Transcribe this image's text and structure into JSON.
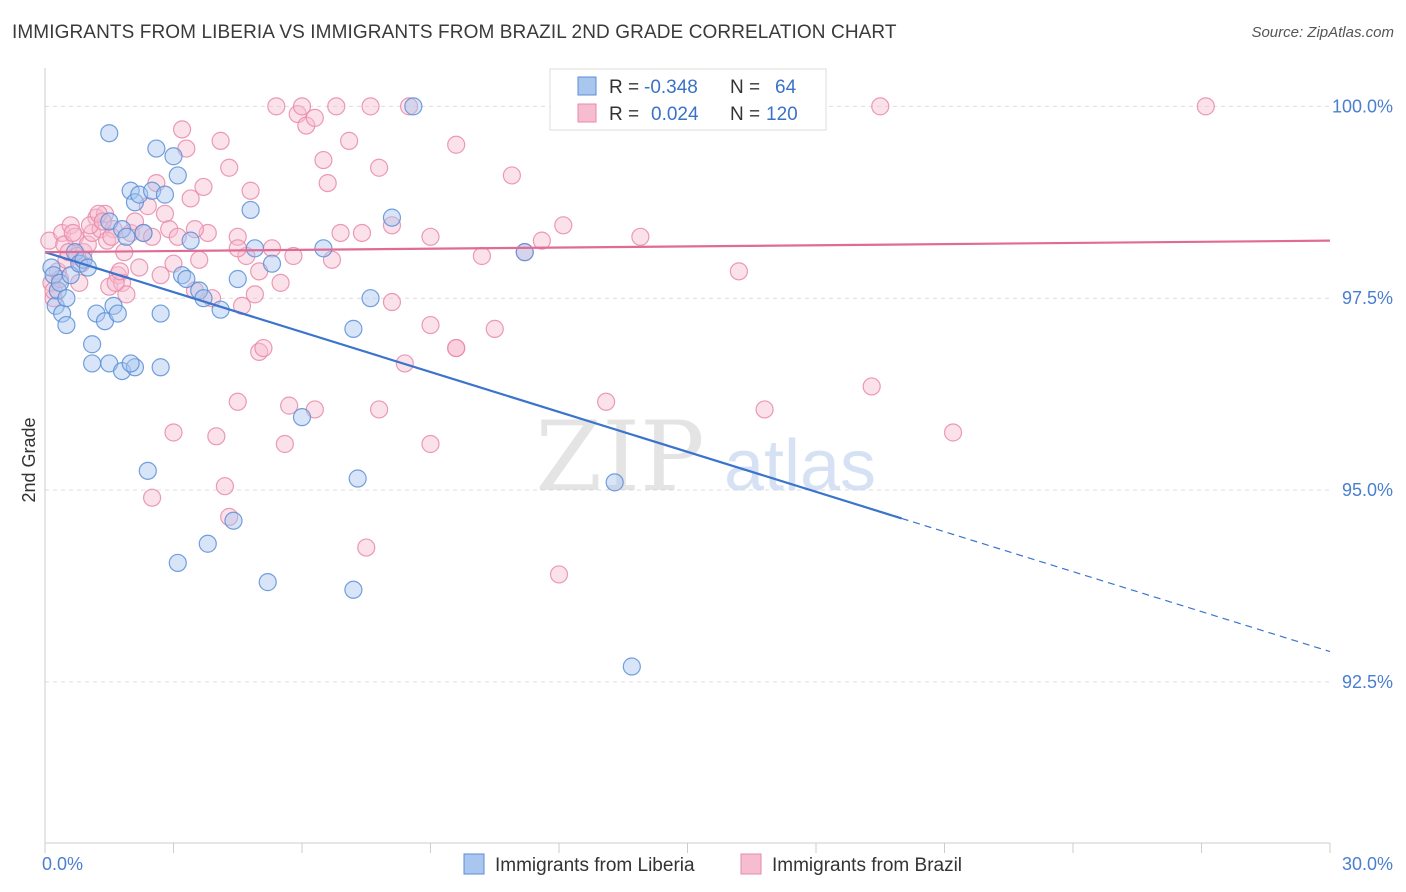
{
  "title": "IMMIGRANTS FROM LIBERIA VS IMMIGRANTS FROM BRAZIL 2ND GRADE CORRELATION CHART",
  "source": "Source: ZipAtlas.com",
  "watermark": {
    "part1": "ZIP",
    "part2": "atlas"
  },
  "colors": {
    "liberia_fill": "#a9c6ef",
    "liberia_stroke": "#5b8fd6",
    "liberia_line": "#3a74cc",
    "brazil_fill": "#f6bdd0",
    "brazil_stroke": "#e889aa",
    "brazil_line": "#e06b96",
    "axis_text": "#4a7fd0",
    "grid": "#dddddd"
  },
  "chart_data": {
    "type": "scatter",
    "xlabel": "",
    "ylabel": "2nd Grade",
    "xlim": [
      0,
      30
    ],
    "ylim": [
      90.4,
      100.5
    ],
    "x_tick_labels": [
      {
        "value": 0,
        "label": "0.0%"
      },
      {
        "value": 30,
        "label": "30.0%"
      }
    ],
    "y_tick_labels": [
      {
        "value": 100,
        "label": "100.0%"
      },
      {
        "value": 97.5,
        "label": "97.5%"
      },
      {
        "value": 95,
        "label": "95.0%"
      },
      {
        "value": 92.5,
        "label": "92.5%"
      }
    ],
    "grid": true,
    "legend_position": "bottom",
    "stats": [
      {
        "r_label": "R =",
        "r_value": "-0.348",
        "n_label": "N =",
        "n_value": "64"
      },
      {
        "r_label": "R =",
        "r_value": "0.024",
        "n_label": "N =",
        "n_value": "120"
      }
    ],
    "series": [
      {
        "name": "Immigrants from Liberia",
        "trend": {
          "x0": 0,
          "y0": 98.1,
          "x1": 20,
          "y1": 94.63,
          "x_dash_end": 30
        },
        "points": [
          [
            0.15,
            97.9
          ],
          [
            0.2,
            97.8
          ],
          [
            0.25,
            97.4
          ],
          [
            0.3,
            97.6
          ],
          [
            0.35,
            97.7
          ],
          [
            0.4,
            97.3
          ],
          [
            0.5,
            97.15
          ],
          [
            0.6,
            97.8
          ],
          [
            0.7,
            98.1
          ],
          [
            0.8,
            97.95
          ],
          [
            0.9,
            98.0
          ],
          [
            1.0,
            97.9
          ],
          [
            1.1,
            96.9
          ],
          [
            1.2,
            97.3
          ],
          [
            1.4,
            97.2
          ],
          [
            1.5,
            98.5
          ],
          [
            1.6,
            97.4
          ],
          [
            1.7,
            97.3
          ],
          [
            1.8,
            98.4
          ],
          [
            1.9,
            98.3
          ],
          [
            2.0,
            98.9
          ],
          [
            2.1,
            98.75
          ],
          [
            2.2,
            98.85
          ],
          [
            2.3,
            98.35
          ],
          [
            1.5,
            96.65
          ],
          [
            1.8,
            96.55
          ],
          [
            2.1,
            96.6
          ],
          [
            2.5,
            98.9
          ],
          [
            2.7,
            96.6
          ],
          [
            2.8,
            98.85
          ],
          [
            2.7,
            97.3
          ],
          [
            3.0,
            99.35
          ],
          [
            3.1,
            99.1
          ],
          [
            3.2,
            97.8
          ],
          [
            3.3,
            97.75
          ],
          [
            3.4,
            98.25
          ],
          [
            3.6,
            97.6
          ],
          [
            3.7,
            97.5
          ],
          [
            4.1,
            97.35
          ],
          [
            4.5,
            97.75
          ],
          [
            4.8,
            98.65
          ],
          [
            4.9,
            98.15
          ],
          [
            5.3,
            97.95
          ],
          [
            6.0,
            95.95
          ],
          [
            6.5,
            98.15
          ],
          [
            7.2,
            97.1
          ],
          [
            7.6,
            97.5
          ],
          [
            8.1,
            98.55
          ],
          [
            8.6,
            100.0
          ],
          [
            11.2,
            98.1
          ],
          [
            13.3,
            95.1
          ],
          [
            13.7,
            92.7
          ],
          [
            1.5,
            99.65
          ],
          [
            2.6,
            99.45
          ],
          [
            1.1,
            96.65
          ],
          [
            2.0,
            96.65
          ],
          [
            2.4,
            95.25
          ],
          [
            3.1,
            94.05
          ],
          [
            3.8,
            94.3
          ],
          [
            4.4,
            94.6
          ],
          [
            5.2,
            93.8
          ],
          [
            7.2,
            93.7
          ],
          [
            7.3,
            95.15
          ],
          [
            0.5,
            97.5
          ]
        ]
      },
      {
        "name": "Immigrants from Brazil",
        "trend": {
          "x0": 0,
          "y0": 98.1,
          "x1": 30,
          "y1": 98.25
        },
        "points": [
          [
            0.1,
            98.25
          ],
          [
            0.15,
            97.7
          ],
          [
            0.2,
            97.5
          ],
          [
            0.3,
            97.85
          ],
          [
            0.4,
            98.35
          ],
          [
            0.5,
            98.0
          ],
          [
            0.6,
            98.45
          ],
          [
            0.7,
            98.3
          ],
          [
            0.8,
            97.7
          ],
          [
            0.9,
            98.1
          ],
          [
            1.0,
            98.2
          ],
          [
            1.1,
            98.35
          ],
          [
            1.2,
            98.55
          ],
          [
            1.3,
            98.4
          ],
          [
            1.4,
            98.6
          ],
          [
            1.5,
            97.65
          ],
          [
            1.6,
            98.4
          ],
          [
            1.7,
            97.8
          ],
          [
            1.8,
            97.7
          ],
          [
            1.9,
            97.55
          ],
          [
            2.0,
            98.35
          ],
          [
            2.1,
            98.5
          ],
          [
            2.2,
            97.9
          ],
          [
            2.3,
            98.35
          ],
          [
            2.4,
            98.7
          ],
          [
            2.5,
            98.3
          ],
          [
            2.6,
            99.0
          ],
          [
            2.7,
            97.8
          ],
          [
            2.8,
            98.6
          ],
          [
            2.9,
            98.4
          ],
          [
            3.0,
            97.95
          ],
          [
            3.1,
            98.3
          ],
          [
            3.2,
            99.7
          ],
          [
            3.3,
            99.45
          ],
          [
            3.4,
            98.8
          ],
          [
            3.5,
            97.6
          ],
          [
            3.6,
            98.0
          ],
          [
            3.7,
            98.95
          ],
          [
            3.8,
            98.35
          ],
          [
            3.9,
            97.5
          ],
          [
            4.1,
            99.55
          ],
          [
            4.3,
            99.2
          ],
          [
            4.5,
            98.3
          ],
          [
            4.6,
            97.4
          ],
          [
            4.7,
            98.05
          ],
          [
            4.8,
            98.9
          ],
          [
            4.9,
            97.55
          ],
          [
            5.0,
            97.85
          ],
          [
            5.3,
            98.15
          ],
          [
            5.5,
            97.7
          ],
          [
            5.8,
            98.05
          ],
          [
            5.9,
            99.9
          ],
          [
            6.1,
            99.75
          ],
          [
            6.3,
            99.85
          ],
          [
            6.5,
            99.3
          ],
          [
            6.6,
            99.0
          ],
          [
            6.7,
            98.0
          ],
          [
            6.9,
            98.35
          ],
          [
            7.1,
            99.55
          ],
          [
            7.4,
            98.35
          ],
          [
            7.6,
            100.0
          ],
          [
            7.8,
            99.2
          ],
          [
            8.1,
            98.45
          ],
          [
            8.5,
            100.0
          ],
          [
            9.0,
            98.3
          ],
          [
            9.6,
            99.5
          ],
          [
            10.2,
            98.05
          ],
          [
            10.9,
            99.1
          ],
          [
            11.2,
            98.1
          ],
          [
            12.1,
            98.45
          ],
          [
            13.9,
            98.3
          ],
          [
            16.2,
            97.85
          ],
          [
            19.5,
            100.0
          ],
          [
            27.1,
            100.0
          ],
          [
            2.5,
            94.9
          ],
          [
            3.0,
            95.75
          ],
          [
            4.0,
            95.7
          ],
          [
            4.2,
            95.05
          ],
          [
            4.3,
            94.65
          ],
          [
            4.5,
            96.15
          ],
          [
            5.0,
            96.8
          ],
          [
            5.1,
            96.85
          ],
          [
            5.6,
            95.6
          ],
          [
            5.7,
            96.1
          ],
          [
            6.3,
            96.05
          ],
          [
            7.5,
            94.25
          ],
          [
            7.8,
            96.05
          ],
          [
            8.4,
            96.65
          ],
          [
            9.0,
            95.6
          ],
          [
            9.6,
            96.85
          ],
          [
            12.0,
            93.9
          ],
          [
            13.1,
            96.15
          ],
          [
            16.8,
            96.05
          ],
          [
            19.3,
            96.35
          ],
          [
            21.2,
            95.75
          ],
          [
            0.2,
            97.6
          ],
          [
            0.35,
            97.75
          ],
          [
            0.45,
            98.2
          ],
          [
            0.55,
            98.1
          ],
          [
            0.65,
            98.35
          ],
          [
            0.75,
            98.05
          ],
          [
            0.85,
            97.95
          ],
          [
            1.05,
            98.45
          ],
          [
            1.25,
            98.6
          ],
          [
            1.35,
            98.5
          ],
          [
            1.45,
            98.25
          ],
          [
            1.55,
            98.3
          ],
          [
            1.65,
            97.7
          ],
          [
            1.75,
            97.85
          ],
          [
            1.85,
            98.1
          ],
          [
            3.5,
            98.4
          ],
          [
            4.5,
            98.15
          ],
          [
            5.4,
            100.0
          ],
          [
            6.0,
            100.0
          ],
          [
            6.8,
            100.0
          ],
          [
            8.1,
            97.45
          ],
          [
            9.0,
            97.15
          ],
          [
            11.6,
            98.25
          ],
          [
            9.6,
            96.85
          ],
          [
            10.5,
            97.1
          ]
        ]
      }
    ]
  }
}
